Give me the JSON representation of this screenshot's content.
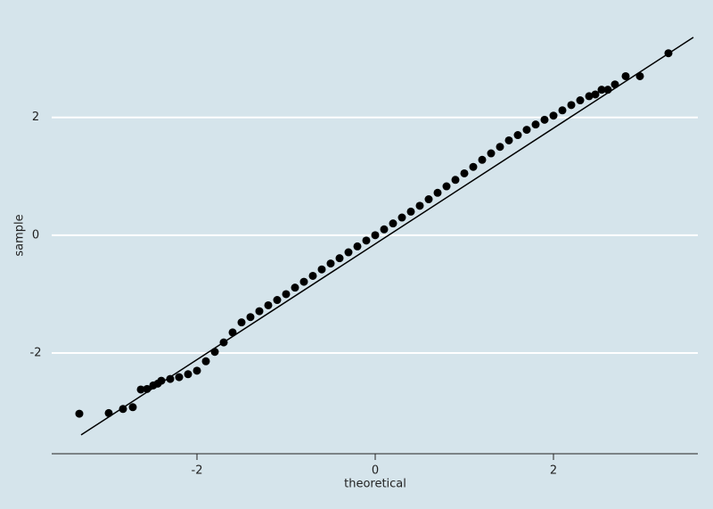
{
  "chart_data": {
    "type": "scatter",
    "xlabel": "theoretical",
    "ylabel": "sample",
    "x": [
      -3.32,
      -2.99,
      -2.83,
      -2.72,
      -2.63,
      -2.56,
      -2.49,
      -2.44,
      -2.4,
      -2.3,
      -2.2,
      -2.1,
      -2.0,
      -1.9,
      -1.8,
      -1.7,
      -1.6,
      -1.5,
      -1.4,
      -1.3,
      -1.2,
      -1.1,
      -1.0,
      -0.9,
      -0.8,
      -0.7,
      -0.6,
      -0.5,
      -0.4,
      -0.3,
      -0.2,
      -0.1,
      0,
      0.1,
      0.2,
      0.3,
      0.4,
      0.5,
      0.6,
      0.7,
      0.8,
      0.9,
      1.0,
      1.1,
      1.2,
      1.3,
      1.4,
      1.5,
      1.6,
      1.7,
      1.8,
      1.9,
      2.0,
      2.1,
      2.2,
      2.3,
      2.4,
      2.47,
      2.54,
      2.61,
      2.69,
      2.81,
      2.97,
      3.29
    ],
    "values": [
      -3.03,
      -3.02,
      -2.95,
      -2.92,
      -2.62,
      -2.61,
      -2.55,
      -2.52,
      -2.47,
      -2.44,
      -2.41,
      -2.36,
      -2.3,
      -2.14,
      -1.98,
      -1.82,
      -1.65,
      -1.48,
      -1.39,
      -1.29,
      -1.19,
      -1.1,
      -1.0,
      -0.89,
      -0.79,
      -0.69,
      -0.58,
      -0.48,
      -0.39,
      -0.29,
      -0.19,
      -0.09,
      0,
      0.1,
      0.2,
      0.3,
      0.4,
      0.5,
      0.61,
      0.72,
      0.83,
      0.94,
      1.05,
      1.16,
      1.28,
      1.39,
      1.5,
      1.61,
      1.7,
      1.79,
      1.88,
      1.96,
      2.03,
      2.12,
      2.21,
      2.29,
      2.36,
      2.39,
      2.47,
      2.47,
      2.56,
      2.7,
      2.7,
      3.09
    ],
    "color": "#000000",
    "reference_line": {
      "x": [
        -3.3,
        3.57
      ],
      "y": [
        -3.39,
        3.36
      ],
      "color": "#000000"
    },
    "xlim": [
      -3.63,
      3.62
    ],
    "ylim": [
      -3.71,
      3.6
    ],
    "xticks": [
      -2,
      0,
      2
    ],
    "yticks": [
      -2,
      0,
      2
    ],
    "grid": true,
    "background": "#d5e4eb"
  }
}
